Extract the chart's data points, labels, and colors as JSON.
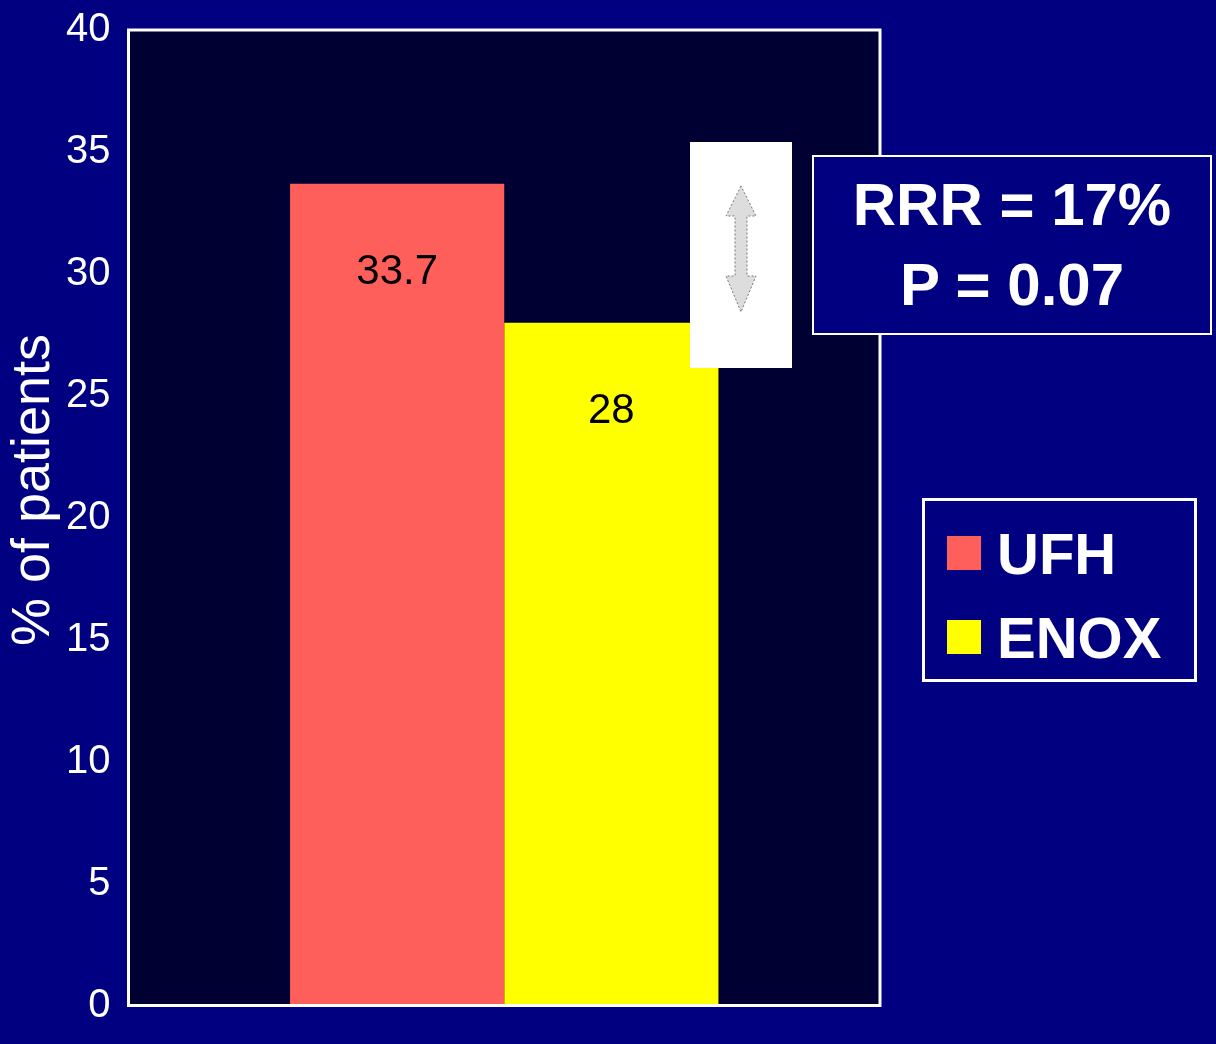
{
  "chart_data": {
    "type": "bar",
    "ylabel": "% of patients",
    "categories": [
      null
    ],
    "series": [
      {
        "name": "UFH",
        "color": "#ff5f5a",
        "values": [
          33.7
        ]
      },
      {
        "name": "ENOX",
        "color": "#ffff00",
        "values": [
          28
        ]
      }
    ],
    "ylim": [
      0,
      40
    ],
    "yticks": [
      0,
      5,
      10,
      15,
      20,
      25,
      30,
      35,
      40
    ],
    "grid": false,
    "legend": "right",
    "data_labels": true,
    "annotations": [
      "RRR = 17%",
      "P = 0.07"
    ]
  }
}
